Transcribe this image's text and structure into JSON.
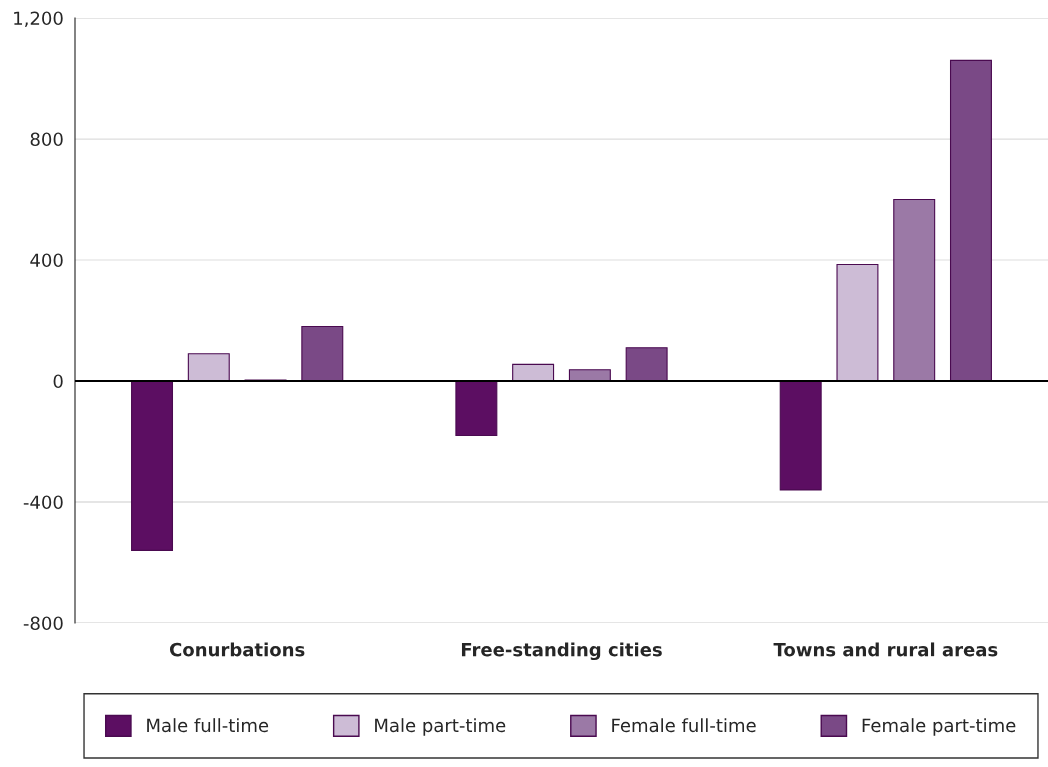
{
  "chart_data": {
    "type": "bar",
    "categories": [
      "Conurbations",
      "Free-standing cities",
      "Towns and rural areas"
    ],
    "series": [
      {
        "name": "Male full-time",
        "color": "#5c0e62",
        "values": [
          -560,
          -180,
          -360
        ]
      },
      {
        "name": "Male part-time",
        "color": "#cdbcd6",
        "values": [
          90,
          55,
          385
        ]
      },
      {
        "name": "Female full-time",
        "color": "#9b79a6",
        "values": [
          3,
          37,
          600
        ]
      },
      {
        "name": "Female part-time",
        "color": "#7a4986",
        "values": [
          180,
          110,
          1060
        ]
      }
    ],
    "ylim": [
      -800,
      1200
    ],
    "yticks": [
      {
        "value": -800,
        "label": "-800"
      },
      {
        "value": -400,
        "label": "-400"
      },
      0,
      400,
      800,
      {
        "value": 1200,
        "label": "1,200"
      }
    ],
    "grid": "y",
    "legend": "bottom"
  }
}
